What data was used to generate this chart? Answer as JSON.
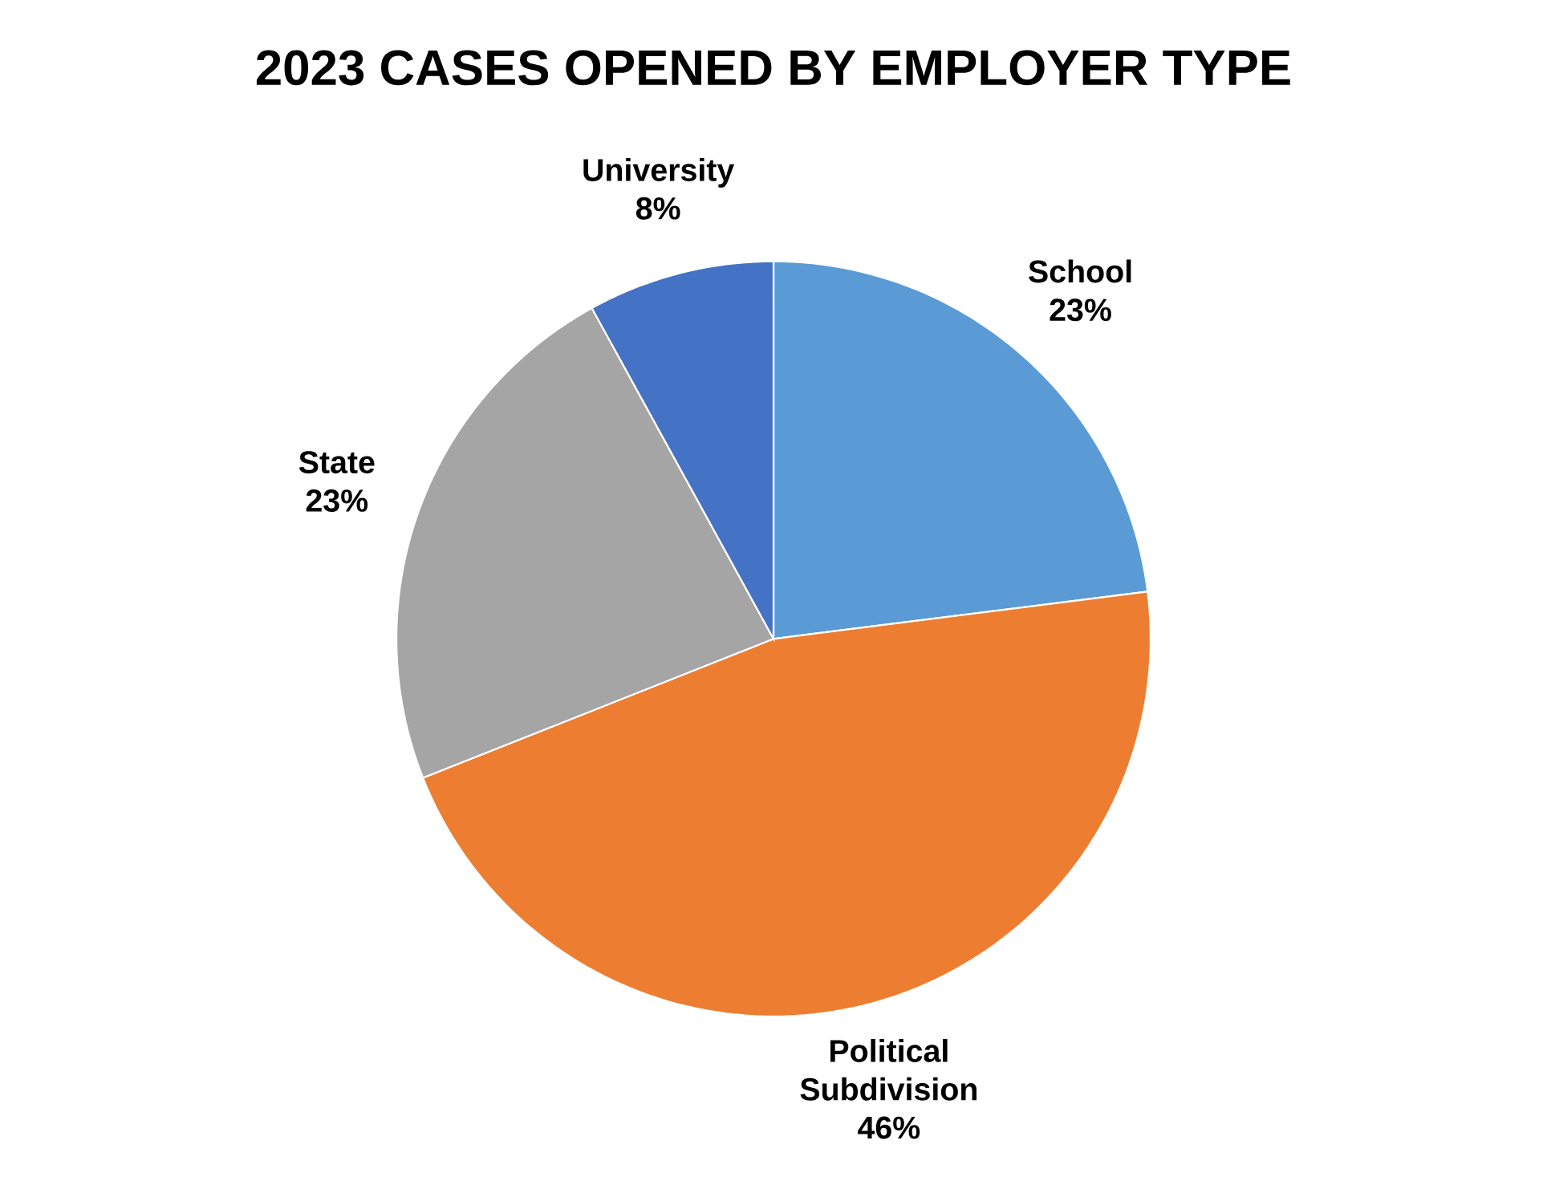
{
  "chart_data": {
    "type": "pie",
    "title": "2023 CASES OPENED BY EMPLOYER TYPE",
    "categories": [
      "School",
      "Political Subdivision",
      "State",
      "University"
    ],
    "values": [
      23,
      46,
      23,
      8
    ],
    "value_labels": [
      "23%",
      "46%",
      "23%",
      "8%"
    ],
    "colors": [
      "#5b9bd5",
      "#ed7d31",
      "#a5a5a5",
      "#4472c4"
    ]
  }
}
